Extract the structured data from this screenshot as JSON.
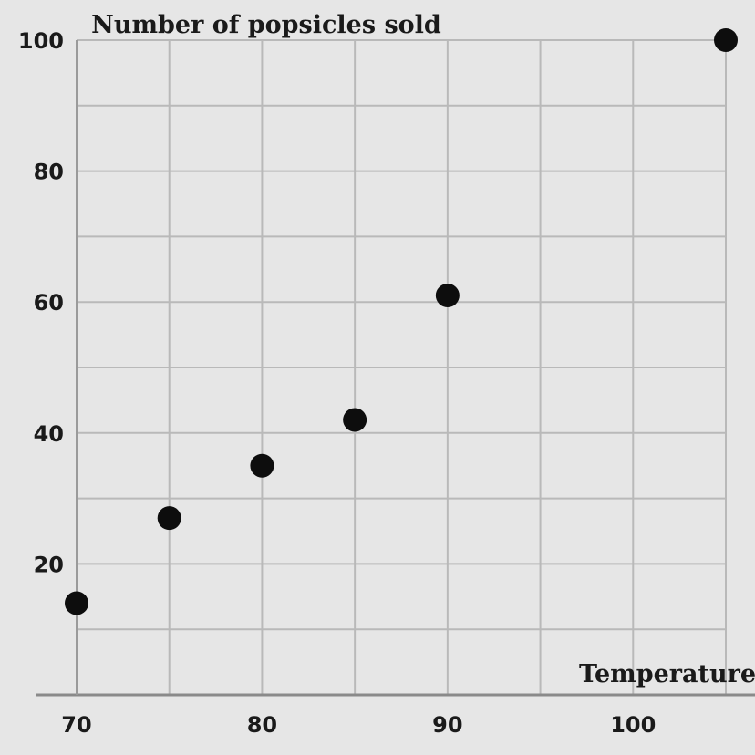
{
  "chart_data": {
    "type": "scatter",
    "title": "Number of popsicles sold",
    "xlabel": "Temperature",
    "ylabel": "",
    "xlim": [
      70,
      105
    ],
    "ylim": [
      0,
      100
    ],
    "x_ticks": [
      70,
      80,
      90,
      100
    ],
    "y_ticks": [
      20,
      40,
      60,
      80,
      100
    ],
    "grid": true,
    "points": [
      {
        "x": 70,
        "y": 14
      },
      {
        "x": 75,
        "y": 27
      },
      {
        "x": 80,
        "y": 35
      },
      {
        "x": 85,
        "y": 42
      },
      {
        "x": 90,
        "y": 61
      },
      {
        "x": 105,
        "y": 100
      }
    ],
    "colors": {
      "point": "#0d0d0d",
      "grid": "#b9b9b9",
      "background": "#e6e6e6"
    }
  }
}
